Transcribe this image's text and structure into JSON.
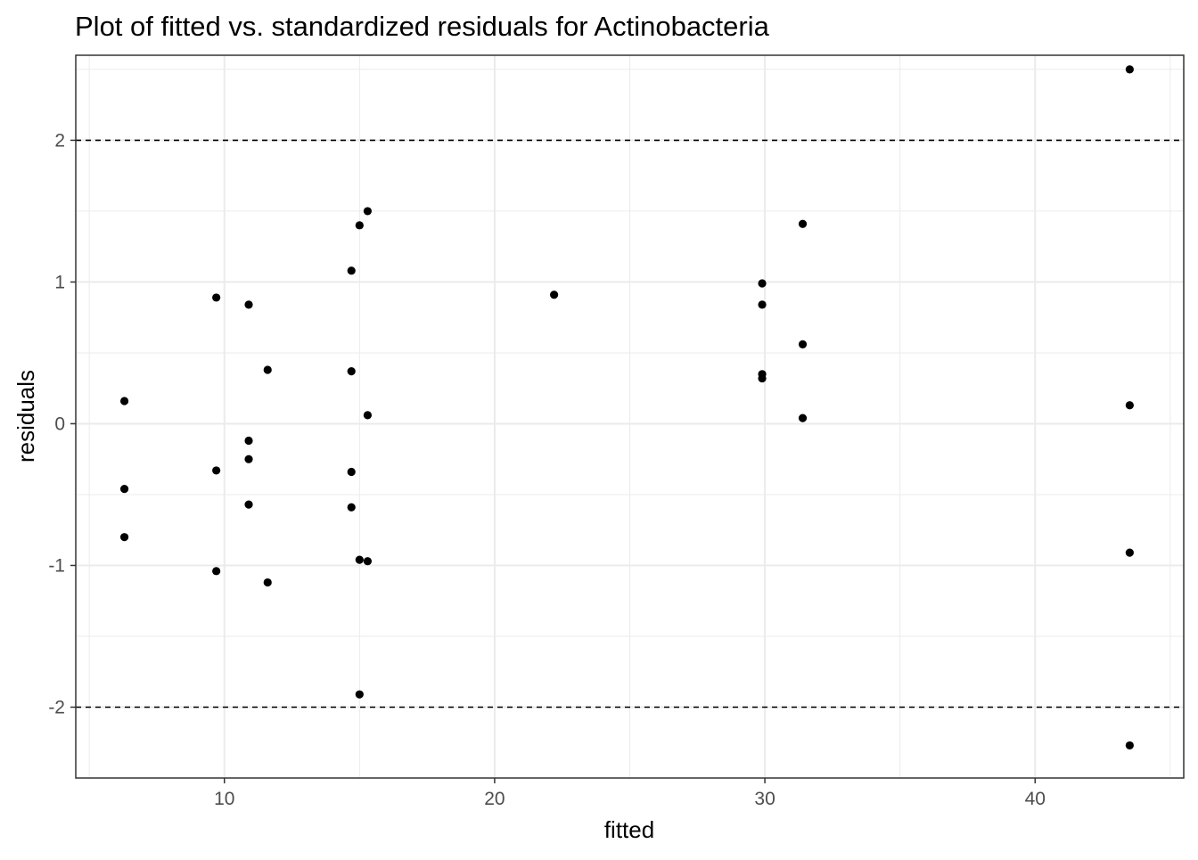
{
  "chart_data": {
    "type": "scatter",
    "title": "Plot of fitted vs. standardized residuals for Actinobacteria",
    "xlabel": "fitted",
    "ylabel": "residuals",
    "xlim": [
      4.5,
      45.5
    ],
    "ylim": [
      -2.5,
      2.6
    ],
    "x_ticks": [
      10,
      20,
      30,
      40
    ],
    "y_ticks": [
      -2,
      -1,
      0,
      1,
      2
    ],
    "x_tick_labels": [
      "10",
      "20",
      "30",
      "40"
    ],
    "y_tick_labels": [
      "-2",
      "-1",
      "0",
      "1",
      "2"
    ],
    "reference_lines": [
      2,
      -2
    ],
    "grid": true,
    "colors": {
      "points": "#000000",
      "grid": "#ebebeb",
      "border": "#333333",
      "text": "#4d4d4d"
    },
    "points": [
      {
        "x": 6.3,
        "y": 0.16
      },
      {
        "x": 6.3,
        "y": -0.46
      },
      {
        "x": 6.3,
        "y": -0.8
      },
      {
        "x": 9.7,
        "y": 0.89
      },
      {
        "x": 9.7,
        "y": -0.33
      },
      {
        "x": 9.7,
        "y": -1.04
      },
      {
        "x": 10.9,
        "y": 0.84
      },
      {
        "x": 10.9,
        "y": -0.12
      },
      {
        "x": 10.9,
        "y": -0.25
      },
      {
        "x": 10.9,
        "y": -0.57
      },
      {
        "x": 11.6,
        "y": 0.38
      },
      {
        "x": 11.6,
        "y": -1.12
      },
      {
        "x": 14.7,
        "y": 1.08
      },
      {
        "x": 14.7,
        "y": 0.37
      },
      {
        "x": 14.7,
        "y": -0.34
      },
      {
        "x": 14.7,
        "y": -0.59
      },
      {
        "x": 15.0,
        "y": 1.4
      },
      {
        "x": 15.0,
        "y": -0.96
      },
      {
        "x": 15.0,
        "y": -1.91
      },
      {
        "x": 15.3,
        "y": 1.5
      },
      {
        "x": 15.3,
        "y": 0.06
      },
      {
        "x": 15.3,
        "y": -0.97
      },
      {
        "x": 22.2,
        "y": 0.91
      },
      {
        "x": 29.9,
        "y": 0.99
      },
      {
        "x": 29.9,
        "y": 0.84
      },
      {
        "x": 29.9,
        "y": 0.35
      },
      {
        "x": 29.9,
        "y": 0.32
      },
      {
        "x": 31.4,
        "y": 1.41
      },
      {
        "x": 31.4,
        "y": 0.56
      },
      {
        "x": 31.4,
        "y": 0.04
      },
      {
        "x": 43.5,
        "y": 2.5
      },
      {
        "x": 43.5,
        "y": 0.13
      },
      {
        "x": 43.5,
        "y": -0.91
      },
      {
        "x": 43.5,
        "y": -2.27
      }
    ]
  }
}
